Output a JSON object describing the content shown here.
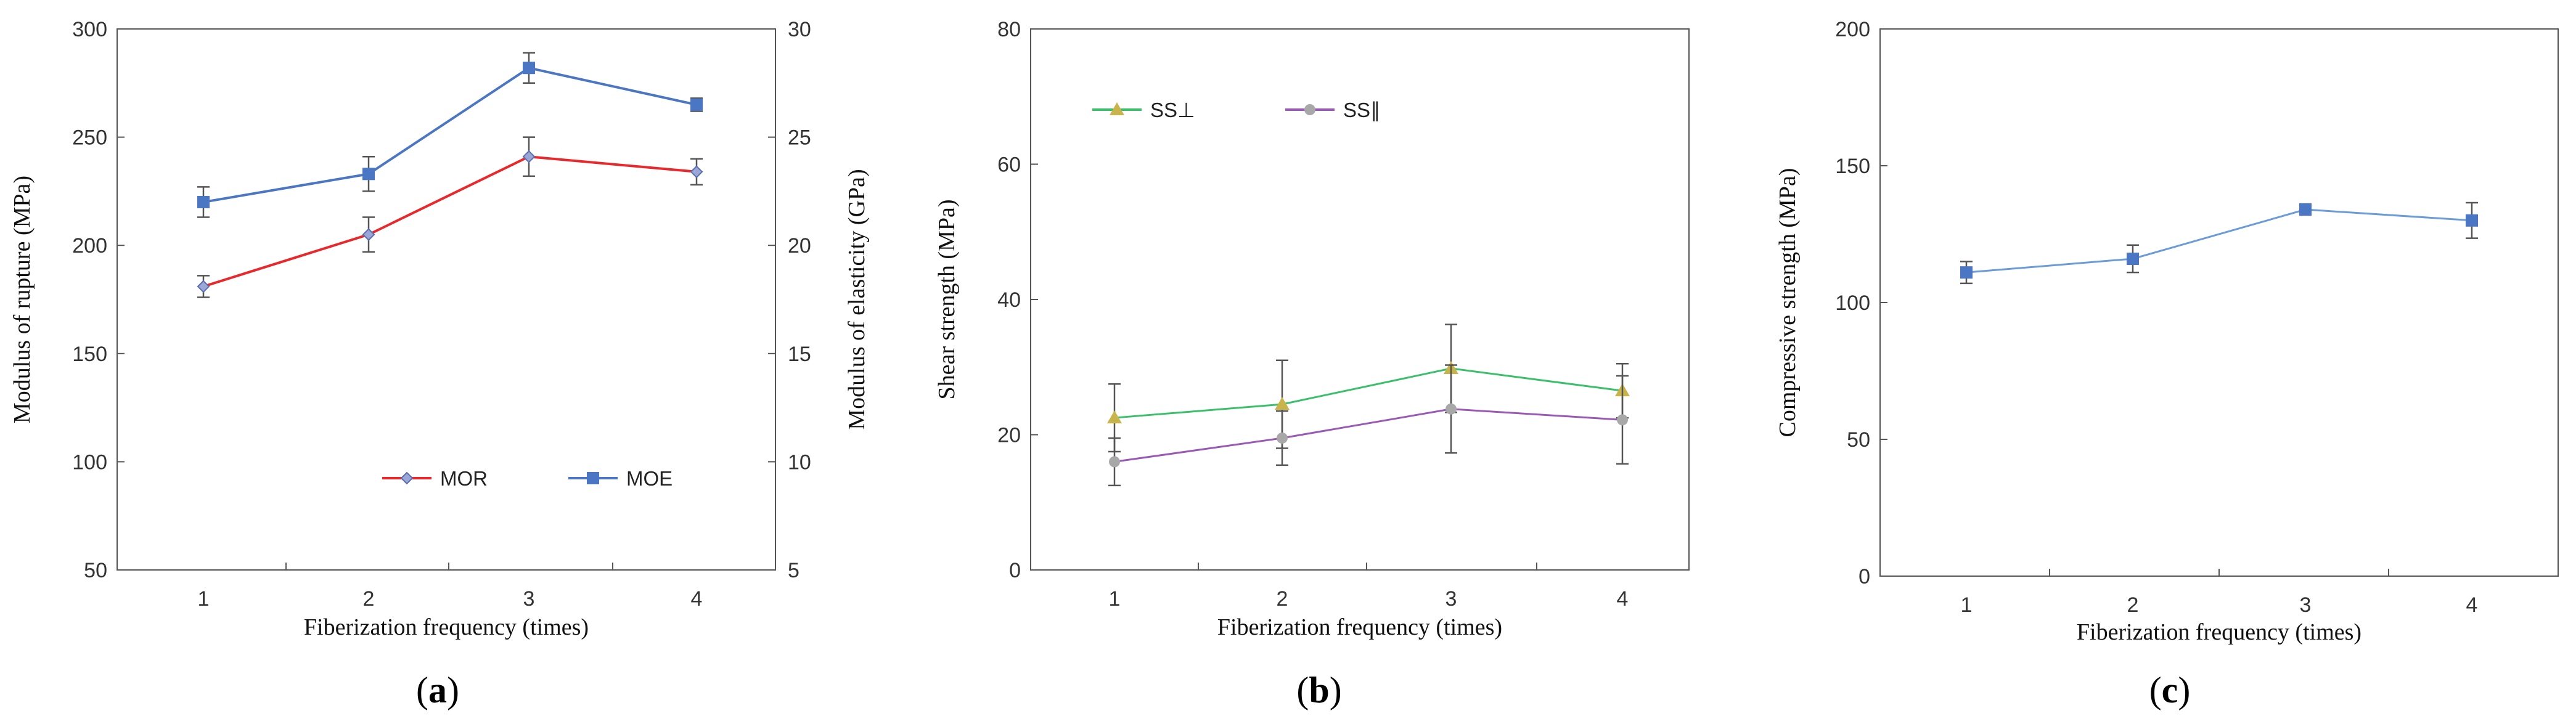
{
  "chart_data": [
    {
      "type": "line",
      "panel_label": "(a)",
      "panel_letter": "a",
      "xlabel": "Fiberization frequency (times)",
      "ylabel": "Modulus of rupture (MPa)",
      "y2label": "Modulus of elasticity (GPa)",
      "categories": [
        "1",
        "2",
        "3",
        "4"
      ],
      "ylim": [
        50,
        300
      ],
      "yticks": [
        "50",
        "100",
        "150",
        "200",
        "250",
        "300"
      ],
      "y2lim": [
        5,
        30
      ],
      "y2ticks": [
        "5",
        "10",
        "15",
        "20",
        "25",
        "30"
      ],
      "grid": false,
      "legend_position": "bottom-right",
      "series": [
        {
          "name": "MOR",
          "axis": "left",
          "values": [
            181,
            205,
            241,
            234
          ],
          "errors": [
            5,
            8,
            9,
            6
          ],
          "color": "#e8282b",
          "marker": "diamond"
        },
        {
          "name": "MOE",
          "axis": "right",
          "values": [
            22.0,
            23.3,
            28.2,
            26.5
          ],
          "errors": [
            0.7,
            0.8,
            0.7,
            0.3
          ],
          "color": "#4a76c4",
          "marker": "square"
        }
      ]
    },
    {
      "type": "line",
      "panel_label": "(b)",
      "panel_letter": "b",
      "xlabel": "Fiberization frequency (times)",
      "ylabel": "Shear strength (MPa)",
      "categories": [
        "1",
        "2",
        "3",
        "4"
      ],
      "ylim": [
        0,
        80
      ],
      "yticks": [
        "0",
        "20",
        "40",
        "60",
        "80"
      ],
      "grid": false,
      "legend_position": "top-left",
      "series": [
        {
          "name": "SS⊥",
          "values": [
            22.5,
            24.5,
            29.8,
            26.5
          ],
          "errors": [
            5,
            6.5,
            6.5,
            4
          ],
          "color": "#3cbf6b",
          "marker": "triangle",
          "marker_color": "#c8b44a"
        },
        {
          "name": "SS∥",
          "values": [
            16,
            19.5,
            23.8,
            22.2
          ],
          "errors": [
            3.5,
            4,
            6.5,
            6.5
          ],
          "color": "#9b59b6",
          "marker": "circle",
          "marker_color": "#a8a8a8"
        }
      ]
    },
    {
      "type": "line",
      "panel_label": "(c)",
      "panel_letter": "c",
      "xlabel": "Fiberization frequency (times)",
      "ylabel": "Compressive strength (MPa)",
      "categories": [
        "1",
        "2",
        "3",
        "4"
      ],
      "ylim": [
        0,
        200
      ],
      "yticks": [
        "0",
        "50",
        "100",
        "150",
        "200"
      ],
      "grid": false,
      "legend_position": "none",
      "series": [
        {
          "name": "Compressive strength",
          "values": [
            111,
            116,
            134,
            130
          ],
          "errors": [
            4,
            5,
            2,
            6.5
          ],
          "color": "#6b9bd8",
          "marker": "square",
          "marker_color": "#4a76c4"
        }
      ]
    }
  ]
}
